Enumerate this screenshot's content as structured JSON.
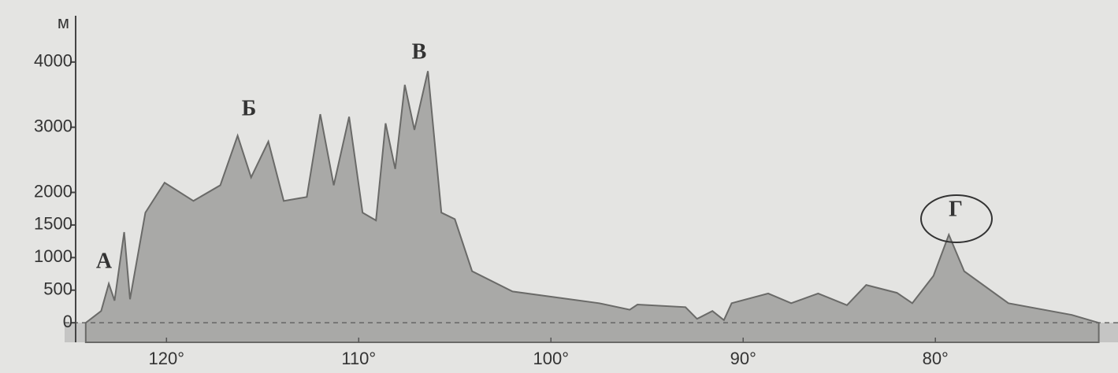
{
  "chart_data": {
    "type": "area",
    "y_label": "м",
    "x": [
      124.2,
      123.4,
      123.0,
      122.7,
      122.2,
      121.9,
      121.1,
      120.1,
      118.6,
      117.2,
      116.3,
      115.6,
      114.7,
      113.9,
      112.7,
      112.0,
      111.3,
      110.5,
      109.8,
      109.1,
      108.6,
      108.1,
      107.6,
      107.1,
      106.4,
      105.7,
      105.0,
      104.1,
      102.0,
      97.5,
      95.9,
      95.5,
      93.0,
      92.4,
      91.6,
      91.0,
      90.6,
      88.7,
      87.5,
      86.1,
      84.6,
      83.6,
      82.0,
      81.2,
      80.1,
      79.3,
      78.5,
      76.2,
      72.9,
      71.5
    ],
    "values": [
      0,
      180,
      600,
      340,
      1390,
      360,
      1690,
      2150,
      1870,
      2110,
      2870,
      2230,
      2780,
      1870,
      1930,
      3200,
      2110,
      3160,
      1690,
      1570,
      3060,
      2360,
      3650,
      2960,
      3860,
      1690,
      1590,
      790,
      480,
      300,
      200,
      280,
      240,
      60,
      180,
      40,
      300,
      450,
      300,
      450,
      270,
      580,
      460,
      300,
      720,
      1350,
      790,
      300,
      120,
      0
    ],
    "color": "#a9a9a7",
    "xlim": [
      125.3,
      70.5
    ],
    "ylim": [
      -300,
      4650
    ],
    "xticks": [
      {
        "value": 120,
        "label": "120°"
      },
      {
        "value": 110,
        "label": "110°"
      },
      {
        "value": 100,
        "label": "100°"
      },
      {
        "value": 90,
        "label": "90°"
      },
      {
        "value": 80,
        "label": "80°"
      }
    ],
    "yticks": [
      0,
      500,
      1000,
      1500,
      2000,
      3000,
      4000
    ],
    "annotations": [
      "А",
      "Б",
      "В",
      "Г"
    ]
  }
}
